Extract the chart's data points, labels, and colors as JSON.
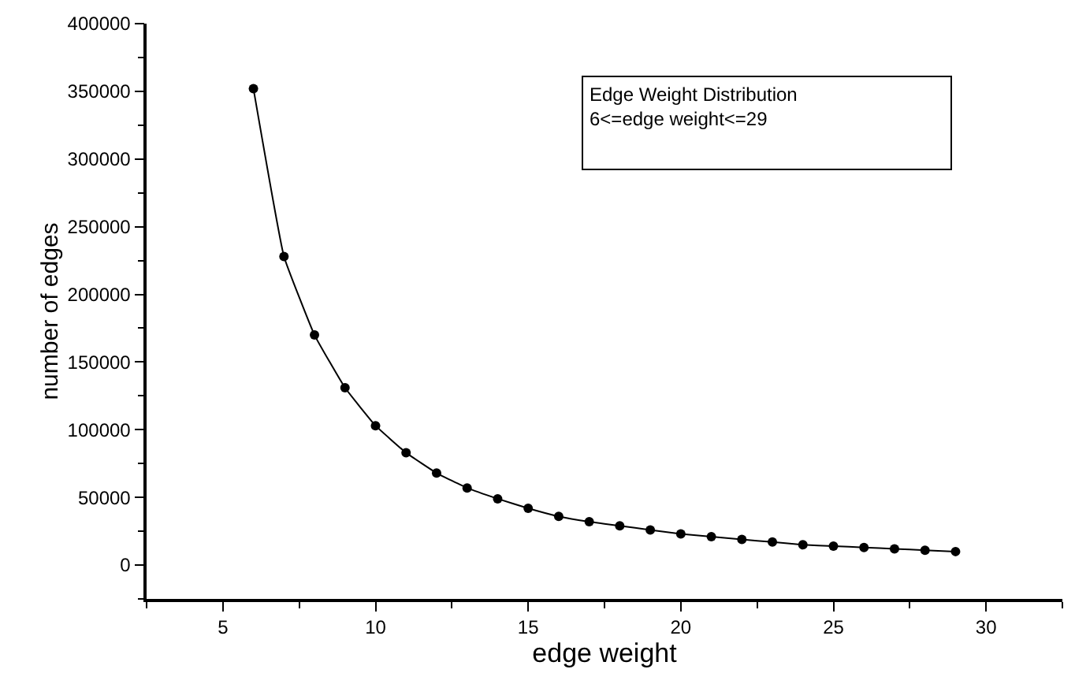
{
  "chart_data": {
    "type": "line",
    "xlabel": "edge weight",
    "ylabel": "number of edges",
    "annotations": [
      "Edge Weight Distribution\n6<=edge weight<=29"
    ],
    "x": [
      6,
      7,
      8,
      9,
      10,
      11,
      12,
      13,
      14,
      15,
      16,
      17,
      18,
      19,
      20,
      21,
      22,
      23,
      24,
      25,
      26,
      27,
      28,
      29
    ],
    "series": [
      {
        "color": "#000000",
        "values": [
          352000,
          228000,
          170000,
          131000,
          103000,
          83000,
          68000,
          57000,
          49000,
          42000,
          36000,
          32000,
          29000,
          26000,
          23000,
          21000,
          19000,
          17000,
          15000,
          14000,
          13000,
          12000,
          11000,
          10000
        ]
      }
    ],
    "marker": "circle",
    "line_style": "solid",
    "xlim": [
      2.5,
      32.5
    ],
    "xticks": [
      {
        "value": 2.5,
        "label": null
      },
      5,
      {
        "value": 7.5,
        "label": null
      },
      10,
      {
        "value": 12.5,
        "label": null
      },
      15,
      {
        "value": 17.5,
        "label": null
      },
      20,
      {
        "value": 22.5,
        "label": null
      },
      25,
      {
        "value": 27.5,
        "label": null
      },
      30,
      {
        "value": 32.5,
        "label": null
      }
    ],
    "ylim": [
      -25000,
      400000
    ],
    "yticks": [
      {
        "value": -25000,
        "label": null
      },
      0,
      {
        "value": 25000,
        "label": null
      },
      50000,
      {
        "value": 75000,
        "label": null
      },
      100000,
      {
        "value": 125000,
        "label": null
      },
      150000,
      {
        "value": 175000,
        "label": null
      },
      200000,
      {
        "value": 225000,
        "label": null
      },
      250000,
      {
        "value": 275000,
        "label": null
      },
      300000,
      {
        "value": 325000,
        "label": null
      },
      350000,
      {
        "value": 375000,
        "label": null
      },
      400000
    ]
  }
}
